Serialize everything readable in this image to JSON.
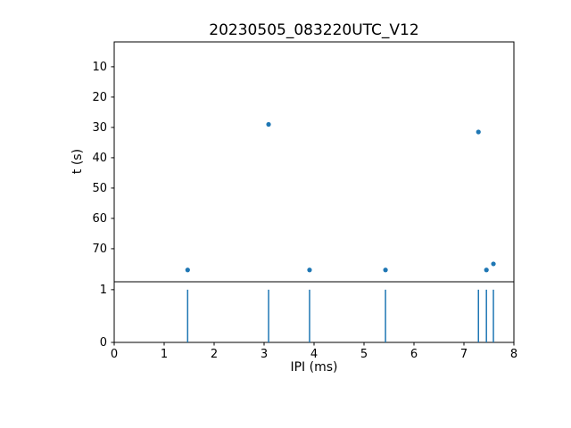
{
  "chart_data": {
    "type": "scatter+stem",
    "title": "20230505_083220UTC_V12",
    "xlabel": "IPI (ms)",
    "ylabel": "t (s)",
    "marker_color": "#1f77b4",
    "axis_color": "#000000",
    "xlim": [
      0,
      8
    ],
    "x_ticks": [
      0,
      1,
      2,
      3,
      4,
      5,
      6,
      7,
      8
    ],
    "top": {
      "ylim": [
        1.8,
        80.9
      ],
      "inverted": true,
      "y_ticks": [
        10,
        20,
        30,
        40,
        50,
        60,
        70
      ],
      "points": [
        [
          1.47,
          77.0
        ],
        [
          3.09,
          29.0
        ],
        [
          3.91,
          77.0
        ],
        [
          5.43,
          77.0
        ],
        [
          7.29,
          31.5
        ],
        [
          7.45,
          77.0
        ],
        [
          7.59,
          75.0
        ]
      ]
    },
    "bottom": {
      "ylim": [
        0,
        1.15
      ],
      "y_ticks": [
        0,
        1
      ],
      "stems": [
        {
          "x": 1.47,
          "h": 1
        },
        {
          "x": 3.09,
          "h": 1
        },
        {
          "x": 3.91,
          "h": 1
        },
        {
          "x": 5.43,
          "h": 1
        },
        {
          "x": 7.29,
          "h": 1
        },
        {
          "x": 7.45,
          "h": 1
        },
        {
          "x": 7.59,
          "h": 1
        }
      ]
    }
  }
}
